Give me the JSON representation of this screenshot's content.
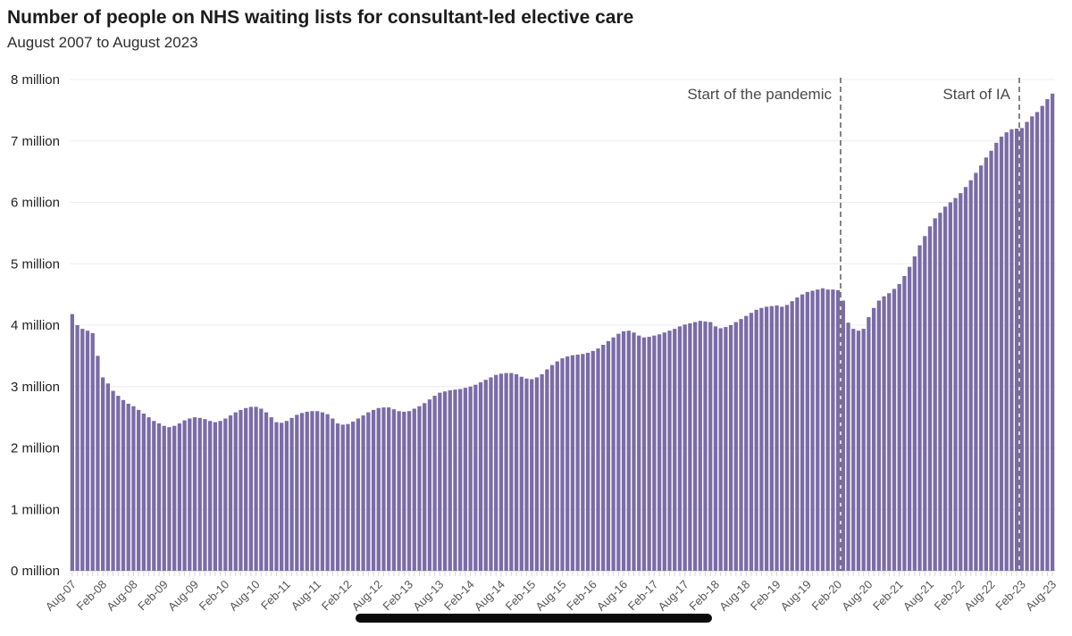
{
  "header": {
    "title": "Number of people on NHS waiting lists for consultant-led elective care",
    "subtitle": "August 2007 to August 2023"
  },
  "annotations": [
    {
      "label": "Start of the pandemic",
      "boundary_index": 151
    },
    {
      "label": "Start of IA",
      "boundary_index": 186
    }
  ],
  "colors": {
    "bar": "#7a6ca6",
    "gridline": "#ececec",
    "baseline": "#cfcfcf",
    "tick": "#d6d6d6",
    "dashed_line": "#666666",
    "x_label": "#555555",
    "y_label": "#222222",
    "annotation_text": "#4a4a4a",
    "redaction_bar": "#0a0a0a"
  },
  "chart_data": {
    "type": "bar",
    "title": "Number of people on NHS waiting lists for consultant-led elective care",
    "subtitle": "August 2007 to August 2023",
    "xlabel": "",
    "ylabel": "",
    "unit": "million people",
    "frequency": "monthly",
    "x_start": "Aug-07",
    "x_end": "Aug-23",
    "ylim": [
      0,
      8
    ],
    "grid": "horizontal",
    "legend": "none",
    "y_tick_labels": [
      "0 million",
      "1 million",
      "2 million",
      "3 million",
      "4 million",
      "5 million",
      "6 million",
      "7 million",
      "8 million"
    ],
    "x_tick_labels": [
      "Aug-07",
      "Feb-08",
      "Aug-08",
      "Feb-09",
      "Aug-09",
      "Feb-10",
      "Aug-10",
      "Feb-11",
      "Aug-11",
      "Feb-12",
      "Aug-12",
      "Feb-13",
      "Aug-13",
      "Feb-14",
      "Aug-14",
      "Feb-15",
      "Aug-15",
      "Feb-16",
      "Aug-16",
      "Feb-17",
      "Aug-17",
      "Feb-18",
      "Aug-18",
      "Feb-19",
      "Aug-19",
      "Feb-20",
      "Aug-20",
      "Feb-21",
      "Aug-21",
      "Feb-22",
      "Aug-22",
      "Feb-23",
      "Aug-23"
    ],
    "x_tick_every_n_months": 6,
    "values": [
      4.18,
      4.0,
      3.94,
      3.91,
      3.87,
      3.5,
      3.15,
      3.05,
      2.93,
      2.85,
      2.78,
      2.72,
      2.68,
      2.62,
      2.56,
      2.5,
      2.44,
      2.4,
      2.36,
      2.34,
      2.36,
      2.4,
      2.45,
      2.48,
      2.5,
      2.49,
      2.47,
      2.44,
      2.42,
      2.44,
      2.48,
      2.53,
      2.58,
      2.62,
      2.65,
      2.67,
      2.67,
      2.64,
      2.58,
      2.5,
      2.42,
      2.41,
      2.44,
      2.49,
      2.54,
      2.57,
      2.59,
      2.6,
      2.6,
      2.58,
      2.55,
      2.48,
      2.4,
      2.38,
      2.39,
      2.43,
      2.48,
      2.53,
      2.58,
      2.62,
      2.65,
      2.66,
      2.66,
      2.63,
      2.6,
      2.59,
      2.6,
      2.64,
      2.68,
      2.73,
      2.79,
      2.85,
      2.9,
      2.92,
      2.94,
      2.95,
      2.96,
      2.98,
      3.0,
      3.03,
      3.07,
      3.11,
      3.15,
      3.19,
      3.21,
      3.22,
      3.22,
      3.2,
      3.16,
      3.13,
      3.12,
      3.15,
      3.2,
      3.28,
      3.35,
      3.41,
      3.46,
      3.49,
      3.51,
      3.52,
      3.53,
      3.55,
      3.58,
      3.62,
      3.68,
      3.74,
      3.8,
      3.86,
      3.9,
      3.91,
      3.88,
      3.83,
      3.8,
      3.81,
      3.83,
      3.85,
      3.88,
      3.91,
      3.94,
      3.98,
      4.01,
      4.03,
      4.05,
      4.07,
      4.06,
      4.05,
      3.98,
      3.95,
      3.97,
      4.0,
      4.05,
      4.1,
      4.15,
      4.2,
      4.25,
      4.28,
      4.3,
      4.31,
      4.32,
      4.3,
      4.33,
      4.39,
      4.45,
      4.5,
      4.54,
      4.56,
      4.58,
      4.6,
      4.58,
      4.58,
      4.57,
      4.4,
      4.04,
      3.94,
      3.91,
      3.94,
      4.13,
      4.28,
      4.4,
      4.47,
      4.52,
      4.59,
      4.67,
      4.8,
      4.95,
      5.12,
      5.3,
      5.45,
      5.61,
      5.74,
      5.83,
      5.93,
      6.0,
      6.07,
      6.15,
      6.25,
      6.36,
      6.48,
      6.6,
      6.73,
      6.84,
      6.97,
      7.07,
      7.14,
      7.19,
      7.2,
      7.21,
      7.31,
      7.4,
      7.47,
      7.57,
      7.68,
      7.77
    ]
  }
}
